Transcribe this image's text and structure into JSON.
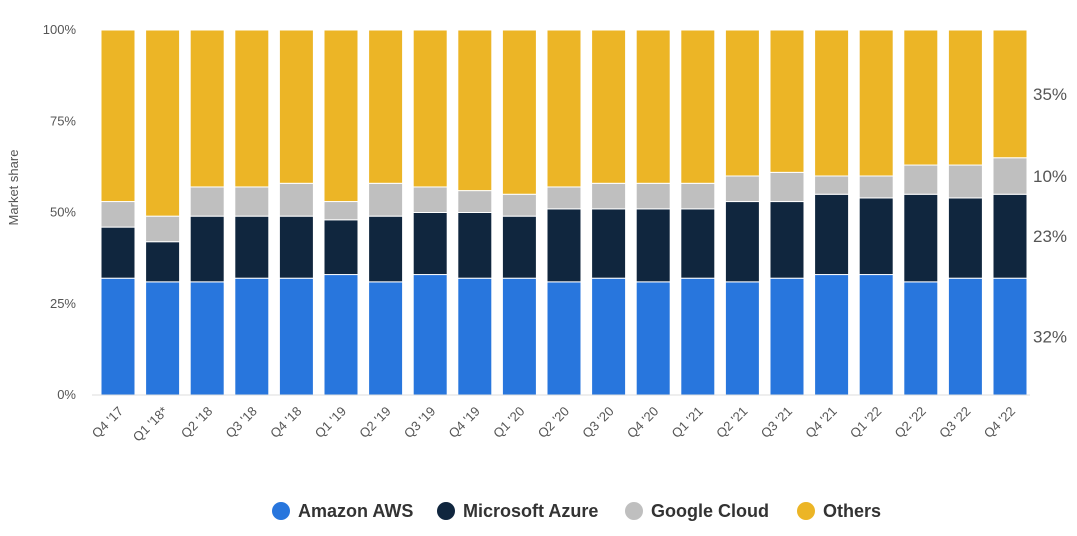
{
  "chart_data": {
    "type": "bar",
    "stacked": true,
    "ylabel": "Market share",
    "ylim": [
      0,
      100
    ],
    "yticks": [
      "0%",
      "25%",
      "50%",
      "75%",
      "100%"
    ],
    "grid": false,
    "legend_position": "bottom",
    "categories": [
      "Q4 '17",
      "Q1 '18*",
      "Q2 '18",
      "Q3 '18",
      "Q4 '18",
      "Q1 '19",
      "Q2 '19",
      "Q3 '19",
      "Q4 '19",
      "Q1 '20",
      "Q2 '20",
      "Q3 '20",
      "Q4 '20",
      "Q1 '21",
      "Q2 '21",
      "Q3 '21",
      "Q4 '21",
      "Q1 '22",
      "Q2 '22",
      "Q3 '22",
      "Q4 '22"
    ],
    "series": [
      {
        "name": "Amazon AWS",
        "color": "#2876dd",
        "values": [
          32,
          31,
          31,
          32,
          32,
          33,
          31,
          33,
          32,
          32,
          31,
          32,
          31,
          32,
          31,
          32,
          33,
          33,
          31,
          32,
          32
        ]
      },
      {
        "name": "Microsoft Azure",
        "color": "#10263e",
        "values": [
          14,
          11,
          18,
          17,
          17,
          15,
          18,
          17,
          18,
          17,
          20,
          19,
          20,
          19,
          22,
          21,
          22,
          21,
          24,
          22,
          23
        ]
      },
      {
        "name": "Google Cloud",
        "color": "#bfbfbf",
        "values": [
          7,
          7,
          8,
          8,
          9,
          5,
          9,
          7,
          6,
          6,
          6,
          7,
          7,
          7,
          7,
          8,
          5,
          6,
          8,
          9,
          10
        ]
      },
      {
        "name": "Others",
        "color": "#ecb526",
        "values": [
          47,
          51,
          43,
          43,
          42,
          47,
          42,
          43,
          44,
          45,
          43,
          42,
          42,
          42,
          40,
          39,
          40,
          40,
          37,
          37,
          35
        ]
      }
    ],
    "right_labels": [
      "35%",
      "10%",
      "23%",
      "32%"
    ]
  }
}
